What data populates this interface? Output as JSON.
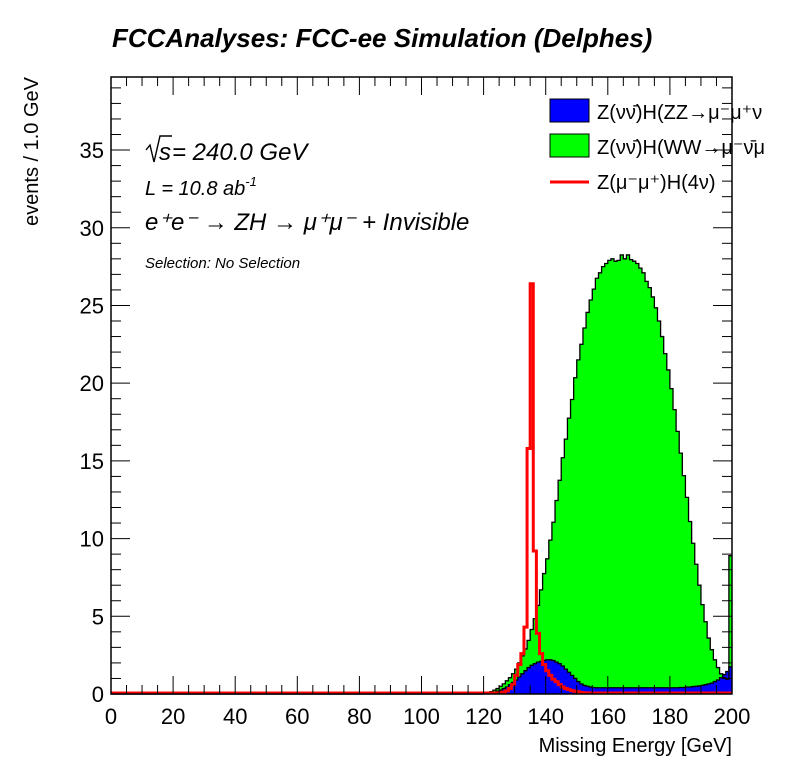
{
  "chart_data": {
    "type": "bar",
    "subtype": "stacked-histogram-with-overlay",
    "title": "FCCAnalyses: FCC-ee Simulation (Delphes)",
    "xlabel": "Missing Energy [GeV]",
    "ylabel": "events / 1.0 GeV",
    "xlim": [
      0,
      200
    ],
    "ylim": [
      0,
      39.7
    ],
    "bin_width": 1.0,
    "x_ticks": [
      "0",
      "20",
      "40",
      "60",
      "80",
      "100",
      "120",
      "140",
      "160",
      "180",
      "200"
    ],
    "y_ticks": [
      "0",
      "5",
      "10",
      "15",
      "20",
      "25",
      "30",
      "35"
    ],
    "x_tick_values": [
      0,
      20,
      40,
      60,
      80,
      100,
      120,
      140,
      160,
      180,
      200
    ],
    "y_tick_values": [
      0,
      5,
      10,
      15,
      20,
      25,
      30,
      35
    ],
    "legend_position": "top-right",
    "annotations": {
      "sqrt_s": "s",
      "energy": " = 240.0 GeV",
      "lumi_prefix": "L = 10.8 ab",
      "lumi_exp": "-1",
      "process": "e⁺e⁻ → ZH → μ⁺μ⁻ + Invisible",
      "selection": "Selection: No Selection"
    },
    "series": [
      {
        "name": "Z(νν̄)H(ZZ→μ⁻μ⁺ν",
        "style": "filled",
        "color": "#0000ff",
        "x_start": 120,
        "values": [
          0.02,
          0.05,
          0.08,
          0.12,
          0.18,
          0.25,
          0.35,
          0.45,
          0.6,
          0.75,
          0.9,
          1.1,
          1.3,
          1.5,
          1.7,
          1.85,
          1.95,
          2.05,
          2.1,
          2.15,
          2.2,
          2.2,
          2.15,
          2.05,
          1.95,
          1.8,
          1.6,
          1.4,
          1.2,
          1.0,
          0.8,
          0.65,
          0.55,
          0.5,
          0.45,
          0.42,
          0.4,
          0.4,
          0.4,
          0.4,
          0.4,
          0.4,
          0.4,
          0.4,
          0.4,
          0.4,
          0.4,
          0.4,
          0.4,
          0.4,
          0.4,
          0.4,
          0.4,
          0.4,
          0.4,
          0.4,
          0.4,
          0.4,
          0.4,
          0.4,
          0.4,
          0.4,
          0.4,
          0.42,
          0.42,
          0.45,
          0.45,
          0.48,
          0.5,
          0.52,
          0.55,
          0.6,
          0.65,
          0.7,
          0.8,
          0.9,
          1.05,
          1.25,
          1.45,
          1.75
        ]
      },
      {
        "name": "Z(νν̄)H(WW→μ⁻ν̄μ",
        "style": "filled-stacked",
        "color": "#00ff00",
        "x_start": 120,
        "stacked_totals": [
          0.05,
          0.1,
          0.15,
          0.25,
          0.35,
          0.5,
          0.65,
          0.85,
          1.05,
          1.3,
          1.6,
          2.0,
          2.45,
          2.9,
          3.45,
          4.15,
          4.85,
          5.7,
          6.7,
          7.75,
          8.7,
          9.9,
          11.05,
          12.45,
          13.75,
          15.2,
          16.4,
          17.75,
          18.95,
          20.35,
          21.5,
          22.5,
          23.55,
          24.55,
          25.35,
          26.05,
          26.75,
          27.1,
          27.5,
          27.7,
          27.9,
          28.0,
          27.85,
          27.9,
          28.25,
          28.0,
          28.25,
          27.95,
          27.85,
          27.7,
          27.4,
          27.1,
          26.55,
          26.15,
          25.55,
          24.85,
          24.0,
          23.0,
          21.9,
          20.85,
          19.65,
          18.3,
          16.9,
          15.5,
          14.05,
          12.65,
          11.1,
          9.7,
          8.35,
          7.0,
          5.75,
          4.65,
          3.6,
          2.85,
          2.2,
          1.7,
          1.3,
          1.05,
          0.95,
          8.9
        ]
      },
      {
        "name": "Z(μ⁻μ⁺)H(4ν)",
        "style": "line",
        "color": "#ff0000",
        "x_start": 120,
        "values": [
          0.01,
          0.01,
          0.02,
          0.03,
          0.05,
          0.08,
          0.12,
          0.2,
          0.35,
          0.6,
          1.2,
          1.9,
          2.6,
          4.3,
          15.8,
          26.4,
          9.2,
          3.9,
          2.6,
          1.9,
          1.5,
          1.2,
          0.95,
          0.8,
          0.6,
          0.45,
          0.35,
          0.28,
          0.22,
          0.18,
          0.14,
          0.1,
          0.08,
          0.07,
          0.06,
          0.05,
          0.05,
          0.04,
          0.04,
          0.04,
          0.03,
          0.03,
          0.03,
          0.03,
          0.03,
          0.03,
          0.03,
          0.03,
          0.03,
          0.03,
          0.03,
          0.03,
          0.03,
          0.03,
          0.03,
          0.03,
          0.03,
          0.03,
          0.03,
          0.03,
          0.03,
          0.03,
          0.03,
          0.03,
          0.03,
          0.03,
          0.03,
          0.03,
          0.03,
          0.03,
          0.03,
          0.03,
          0.03,
          0.03,
          0.03,
          0.03,
          0.03,
          0.03,
          0.03,
          0.03
        ]
      }
    ]
  }
}
